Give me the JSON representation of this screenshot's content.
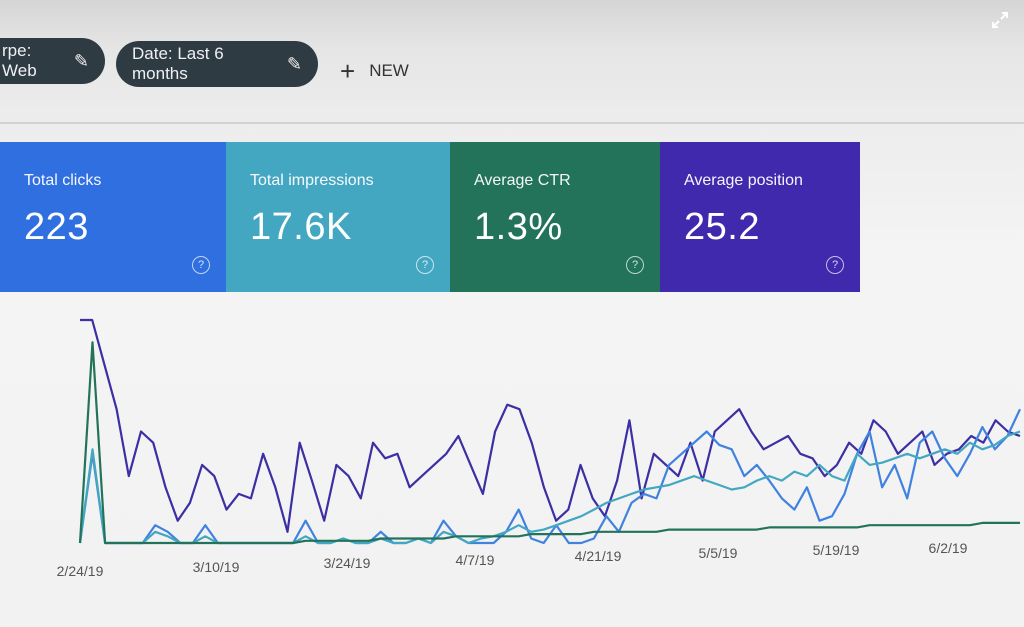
{
  "toolbar": {
    "type_chip": "rpe: Web",
    "date_chip": "Date: Last 6 months",
    "new_label": "NEW"
  },
  "metrics": [
    {
      "label": "Total clicks",
      "value": "223",
      "color": "#2f6fe0"
    },
    {
      "label": "Total impressions",
      "value": "17.6K",
      "color": "#44a7c2"
    },
    {
      "label": "Average CTR",
      "value": "1.3%",
      "color": "#23735a"
    },
    {
      "label": "Average position",
      "value": "25.2",
      "color": "#4029ad"
    }
  ],
  "chart_data": {
    "type": "line",
    "x_ticks": [
      "2/24/19",
      "3/10/19",
      "3/24/19",
      "4/7/19",
      "4/21/19",
      "5/5/19",
      "5/19/19",
      "6/2/19"
    ],
    "series": [
      {
        "color": "#3b2fa3",
        "values": [
          100,
          100,
          80,
          60,
          30,
          50,
          45,
          25,
          10,
          18,
          35,
          30,
          15,
          22,
          20,
          40,
          25,
          5,
          45,
          28,
          10,
          35,
          30,
          20,
          45,
          38,
          40,
          25,
          30,
          35,
          40,
          48,
          35,
          22,
          50,
          62,
          60,
          45,
          25,
          10,
          15,
          35,
          20,
          12,
          28,
          55,
          20,
          40,
          35,
          30,
          45,
          28,
          50,
          55,
          60,
          50,
          42,
          45,
          48,
          40,
          38,
          30,
          35,
          45,
          40,
          55,
          50,
          40,
          45,
          50,
          35,
          40,
          42,
          48,
          45,
          55,
          50,
          48
        ]
      },
      {
        "color": "#3f82e0",
        "values": [
          0,
          40,
          0,
          0,
          0,
          0,
          8,
          5,
          0,
          0,
          8,
          0,
          0,
          0,
          0,
          0,
          0,
          0,
          10,
          0,
          0,
          2,
          0,
          0,
          5,
          0,
          0,
          2,
          0,
          10,
          3,
          0,
          0,
          0,
          5,
          15,
          2,
          0,
          8,
          0,
          0,
          2,
          12,
          5,
          18,
          22,
          20,
          35,
          40,
          45,
          50,
          44,
          42,
          30,
          35,
          28,
          20,
          15,
          25,
          10,
          12,
          22,
          40,
          50,
          25,
          35,
          20,
          45,
          50,
          38,
          30,
          40,
          52,
          42,
          48,
          60
        ]
      },
      {
        "color": "#44a7c2",
        "values": [
          0,
          42,
          0,
          0,
          0,
          0,
          5,
          3,
          0,
          0,
          3,
          0,
          0,
          0,
          0,
          0,
          0,
          0,
          3,
          0,
          0,
          2,
          0,
          0,
          2,
          0,
          0,
          2,
          0,
          5,
          3,
          0,
          2,
          3,
          5,
          8,
          5,
          6,
          8,
          10,
          12,
          15,
          18,
          20,
          22,
          24,
          25,
          26,
          28,
          30,
          28,
          26,
          24,
          25,
          28,
          30,
          28,
          32,
          30,
          35,
          30,
          28,
          40,
          35,
          36,
          38,
          40,
          38,
          40,
          42,
          40,
          45,
          42,
          44,
          48,
          50
        ]
      },
      {
        "color": "#23735a",
        "values": [
          0,
          90,
          0,
          0,
          0,
          0,
          0,
          0,
          0,
          0,
          0,
          0,
          0,
          0,
          0,
          0,
          0,
          0,
          1,
          1,
          1,
          1,
          1,
          1,
          2,
          2,
          2,
          2,
          2,
          2,
          3,
          3,
          3,
          3,
          3,
          3,
          4,
          4,
          4,
          4,
          4,
          5,
          5,
          5,
          5,
          5,
          5,
          6,
          6,
          6,
          6,
          6,
          6,
          6,
          6,
          7,
          7,
          7,
          7,
          7,
          7,
          7,
          7,
          8,
          8,
          8,
          8,
          8,
          8,
          8,
          8,
          8,
          9,
          9,
          9,
          9
        ]
      }
    ]
  }
}
